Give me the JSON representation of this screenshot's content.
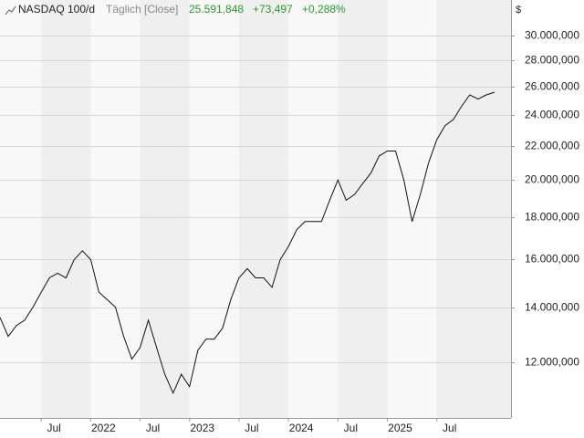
{
  "chart_data": {
    "type": "line",
    "title": "NASDAQ 100/d",
    "subtitle": "Täglich [Close]",
    "annotations": [
      "25.591,848",
      "+73,497",
      "+0,288%"
    ],
    "y_unit": "$",
    "log_scale": true,
    "grid": true,
    "xlim": [
      "2021-02",
      "2026-04"
    ],
    "xticks": [
      {
        "value": "2021-07",
        "label": "Jul"
      },
      {
        "value": "2022-01",
        "label": "2022"
      },
      {
        "value": "2022-07",
        "label": "Jul"
      },
      {
        "value": "2023-01",
        "label": "2023"
      },
      {
        "value": "2023-07",
        "label": "Jul"
      },
      {
        "value": "2024-01",
        "label": "2024"
      },
      {
        "value": "2024-07",
        "label": "Jul"
      },
      {
        "value": "2025-01",
        "label": "2025"
      },
      {
        "value": "2025-07",
        "label": "Jul"
      }
    ],
    "ylim": [
      10260000,
      33150000
    ],
    "yticks": [
      {
        "value": 12000000,
        "label": "12.000,000"
      },
      {
        "value": 14000000,
        "label": "14.000,000"
      },
      {
        "value": 16000000,
        "label": "16.000,000"
      },
      {
        "value": 18000000,
        "label": "18.000,000"
      },
      {
        "value": 20000000,
        "label": "20.000,000"
      },
      {
        "value": 22000000,
        "label": "22.000,000"
      },
      {
        "value": 24000000,
        "label": "24.000,000"
      },
      {
        "value": 26000000,
        "label": "26.000,000"
      },
      {
        "value": 28000000,
        "label": "28.000,000"
      },
      {
        "value": 30000000,
        "label": "30.000,000"
      }
    ],
    "x": [
      "2021-02",
      "2021-03",
      "2021-04",
      "2021-05",
      "2021-06",
      "2021-07",
      "2021-08",
      "2021-09",
      "2021-10",
      "2021-11",
      "2021-12",
      "2022-01",
      "2022-02",
      "2022-03",
      "2022-04",
      "2022-05",
      "2022-06",
      "2022-07",
      "2022-08",
      "2022-09",
      "2022-10",
      "2022-11",
      "2022-12",
      "2023-01",
      "2023-02",
      "2023-03",
      "2023-04",
      "2023-05",
      "2023-06",
      "2023-07",
      "2023-08",
      "2023-09",
      "2023-10",
      "2023-11",
      "2023-12",
      "2024-01",
      "2024-02",
      "2024-03",
      "2024-04",
      "2024-05",
      "2024-06",
      "2024-07",
      "2024-08",
      "2024-09",
      "2024-10",
      "2024-11",
      "2024-12",
      "2025-01",
      "2025-02",
      "2025-03",
      "2025-04",
      "2025-05",
      "2025-06",
      "2025-07",
      "2025-08",
      "2025-09",
      "2025-10",
      "2025-11",
      "2025-12",
      "2026-01",
      "2026-02"
    ],
    "series": [
      {
        "name": "NASDAQ 100",
        "color": "#111111",
        "values": [
          13600000,
          12900000,
          13300000,
          13500000,
          14000000,
          14600000,
          15200000,
          15400000,
          15200000,
          16000000,
          16400000,
          16000000,
          14600000,
          14300000,
          14000000,
          12900000,
          12100000,
          12500000,
          13500000,
          12500000,
          11600000,
          11000000,
          11600000,
          11200000,
          12400000,
          12800000,
          12800000,
          13200000,
          14300000,
          15200000,
          15600000,
          15200000,
          15200000,
          14800000,
          16000000,
          16600000,
          17400000,
          17800000,
          17800000,
          17800000,
          18900000,
          20000000,
          18900000,
          19200000,
          19800000,
          20400000,
          21400000,
          21700000,
          21700000,
          20000000,
          17800000,
          19200000,
          21000000,
          22400000,
          23300000,
          23700000,
          24600000,
          25400000,
          25100000,
          25400000,
          25590000
        ]
      }
    ]
  }
}
